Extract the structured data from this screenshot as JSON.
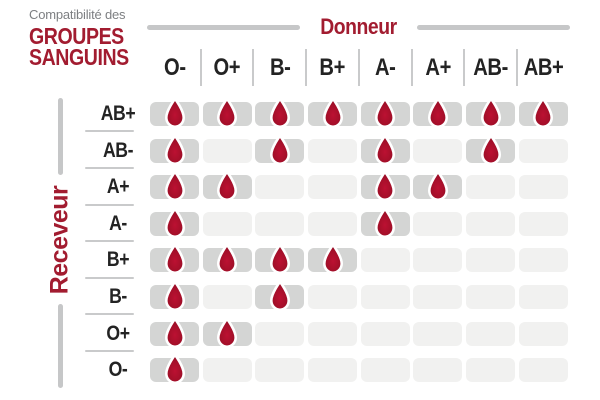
{
  "title": {
    "subtitle": "Compatibilité des",
    "main_line1": "GROUPES",
    "main_line2": "SANGUINS"
  },
  "axes": {
    "donor_label": "Donneur",
    "receiver_label": "Receveur"
  },
  "chart_data": {
    "type": "heatmap",
    "title": "Compatibilité des GROUPES SANGUINS",
    "x_axis_label": "Donneur",
    "y_axis_label": "Receveur",
    "columns": [
      "O-",
      "O+",
      "B-",
      "B+",
      "A-",
      "A+",
      "AB-",
      "AB+"
    ],
    "rows": [
      "AB+",
      "AB-",
      "A+",
      "A-",
      "B+",
      "B-",
      "O+",
      "O-"
    ],
    "values": [
      [
        1,
        1,
        1,
        1,
        1,
        1,
        1,
        1
      ],
      [
        1,
        0,
        1,
        0,
        1,
        0,
        1,
        0
      ],
      [
        1,
        1,
        0,
        0,
        1,
        1,
        0,
        0
      ],
      [
        1,
        0,
        0,
        0,
        1,
        0,
        0,
        0
      ],
      [
        1,
        1,
        1,
        1,
        0,
        0,
        0,
        0
      ],
      [
        1,
        0,
        1,
        0,
        0,
        0,
        0,
        0
      ],
      [
        1,
        1,
        0,
        0,
        0,
        0,
        0,
        0
      ],
      [
        1,
        0,
        0,
        0,
        0,
        0,
        0,
        0
      ]
    ],
    "cell_icon": "blood-drop-icon",
    "legend_position": "none",
    "grid": false
  },
  "colors": {
    "accent_red": "#a21c30",
    "drop_red_light": "#bc1132",
    "drop_red_dark": "#8c0d22",
    "subtitle_gray": "#7d7f82",
    "header_text": "#232323",
    "axis_line_gray": "#c6c7c8",
    "cell_compatible_bg": "#d4d5d4",
    "cell_incompatible_bg": "#f1f1f0"
  }
}
